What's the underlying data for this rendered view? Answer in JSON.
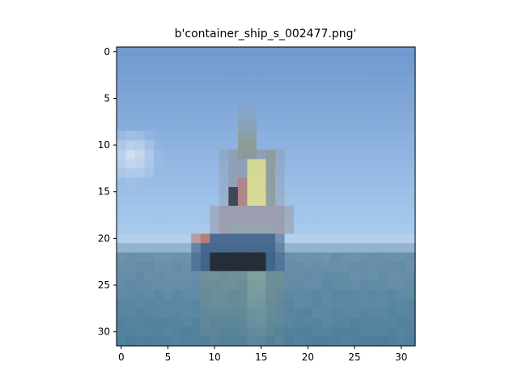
{
  "chart_data": {
    "type": "heatmap",
    "title": "b'container_ship_s_002477.png'",
    "xlabel": "",
    "ylabel": "",
    "image_size": [
      32,
      32
    ],
    "xlim": [
      -0.5,
      31.5
    ],
    "ylim": [
      31.5,
      -0.5
    ],
    "xticks": [
      0,
      5,
      10,
      15,
      20,
      25,
      30
    ],
    "yticks": [
      0,
      5,
      10,
      15,
      20,
      25,
      30
    ],
    "grid": false,
    "colors": {
      "sky_top": "#7199cf",
      "sky_bottom": "#a9cbee",
      "cloud": "#dbe6f4",
      "horizon_haze": "#b9d2ea",
      "sea_top": "#6f94ad",
      "sea_bottom": "#51819d",
      "ship_yellow": "#e8e27a",
      "ship_dark": "#1c2028",
      "hull_blue": "#3c5f86",
      "mast_olive": "#8a8f5a",
      "red_accent": "#b5736a",
      "grey_structure": "#8d98a8"
    }
  }
}
